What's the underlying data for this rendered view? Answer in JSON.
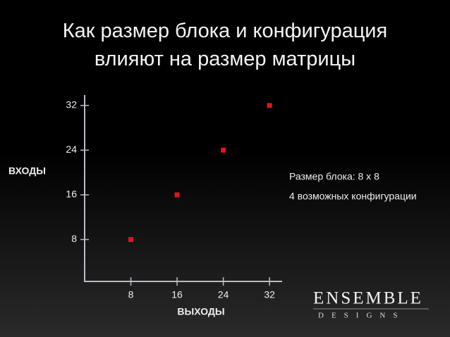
{
  "chart_data": {
    "type": "scatter",
    "title": "Как размер блока и конфигурация влияют на размер матрицы",
    "x_label": "ВЫХОДЫ",
    "y_label": "ВХОДЫ",
    "x": [
      8,
      16,
      24,
      32
    ],
    "series": [
      {
        "color": "#e3141c",
        "values": [
          8,
          16,
          24,
          32
        ]
      }
    ],
    "xlim": [
      0,
      34
    ],
    "ylim": [
      0,
      34
    ],
    "xticks": [
      8,
      16,
      24,
      32
    ],
    "yticks": [
      8,
      16,
      24,
      32
    ],
    "annotations": [
      "Размер блока: 8 x 8",
      "4 возможных конфигурации"
    ]
  },
  "logo": {
    "name": "ENSEMBLE",
    "tagline": "DESIGNS"
  }
}
